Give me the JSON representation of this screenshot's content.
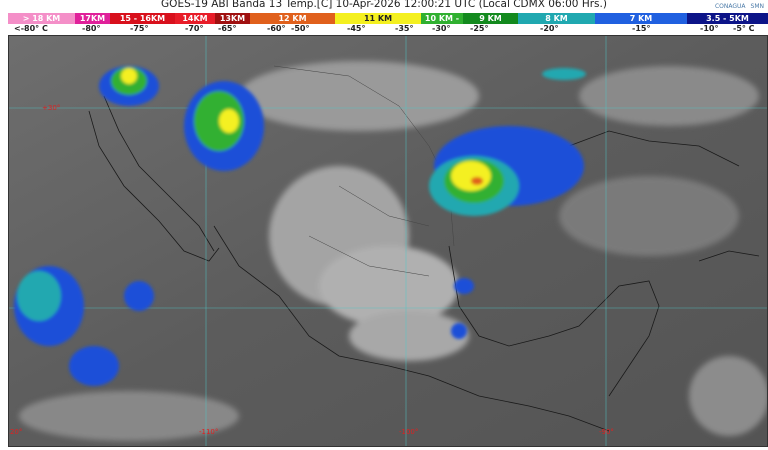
{
  "header": {
    "title": "GOES-19 ABI Banda 13 Temp.[C] 10-Apr-2026 12:00:21 UTC (Local CDMX  06:00 Hrs.)",
    "logos": [
      "CONAGUA",
      "SMN"
    ]
  },
  "legend": {
    "bands": [
      {
        "label": "> 18 KM",
        "color": "#f48fc8"
      },
      {
        "label": "17KM",
        "color": "#e0209a"
      },
      {
        "label": "15 - 16KM",
        "color": "#d8101c"
      },
      {
        "label": "14KM",
        "color": "#e81c28"
      },
      {
        "label": "13KM",
        "color": "#a01010"
      },
      {
        "label": "12 KM",
        "color": "#e0601c"
      },
      {
        "label": "11 KM",
        "color": "#f4f020"
      },
      {
        "label": "10 KM -",
        "color": "#30b030"
      },
      {
        "label": "9 KM",
        "color": "#138a1e"
      },
      {
        "label": "8 KM",
        "color": "#20a8b0"
      },
      {
        "label": "7 KM",
        "color": "#2060e0"
      },
      {
        "label": "3.5 - 5KM",
        "color": "#0c1488"
      }
    ],
    "ticks": [
      "<-80° C",
      "-80°",
      "-75°",
      "-70°",
      "-65°",
      "-60°",
      "-50°",
      "-45°",
      "-35°",
      "-30°",
      "-25°",
      "-20°",
      "-15°",
      "-10°",
      "-5° C"
    ]
  },
  "map": {
    "latitude_labels": [
      "+30°"
    ],
    "longitude_labels": [
      "-120°",
      "-110°",
      "-100°",
      "-90°"
    ],
    "graticule_color": "#4fc8c8",
    "label_color": "#e02020"
  }
}
